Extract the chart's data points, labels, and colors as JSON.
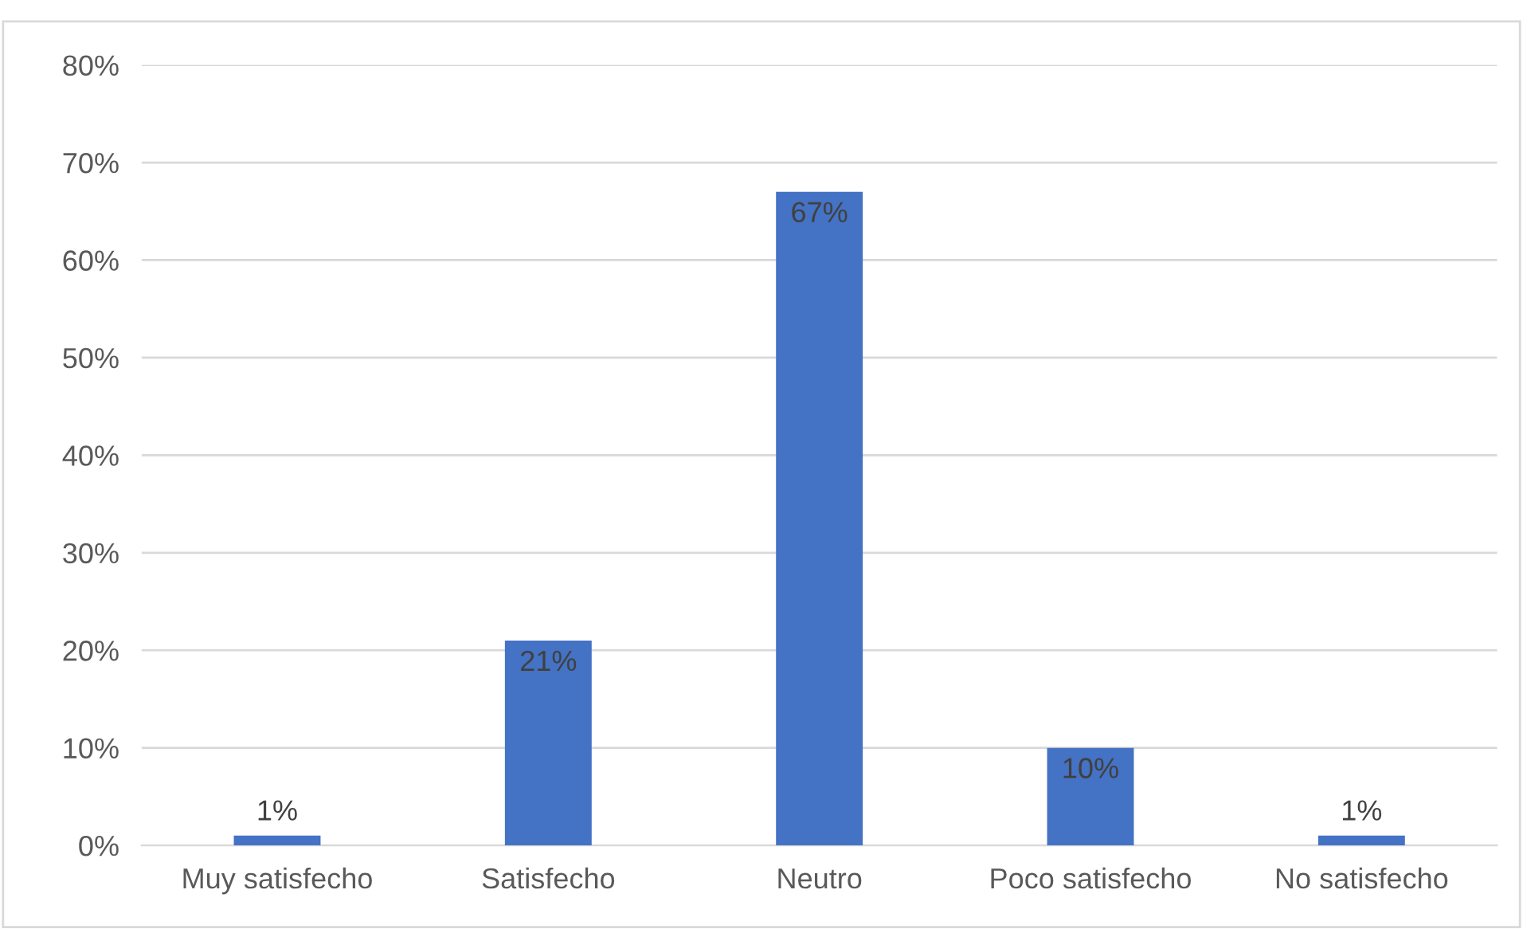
{
  "chart_data": {
    "type": "bar",
    "categories": [
      "Muy satisfecho",
      "Satisfecho",
      "Neutro",
      "Poco satisfecho",
      "No satisfecho"
    ],
    "values": [
      1,
      21,
      67,
      10,
      1
    ],
    "value_labels": [
      "1%",
      "21%",
      "67%",
      "10%",
      "1%"
    ],
    "color": "#4472c4",
    "ylim": [
      0,
      80
    ],
    "yticks": [
      {
        "value": 0,
        "label": "0%"
      },
      {
        "value": 10,
        "label": "10%"
      },
      {
        "value": 20,
        "label": "20%"
      },
      {
        "value": 30,
        "label": "30%"
      },
      {
        "value": 40,
        "label": "40%"
      },
      {
        "value": 50,
        "label": "50%"
      },
      {
        "value": 60,
        "label": "60%"
      },
      {
        "value": 70,
        "label": "70%"
      },
      {
        "value": 80,
        "label": "80%"
      }
    ],
    "grid": "y"
  }
}
